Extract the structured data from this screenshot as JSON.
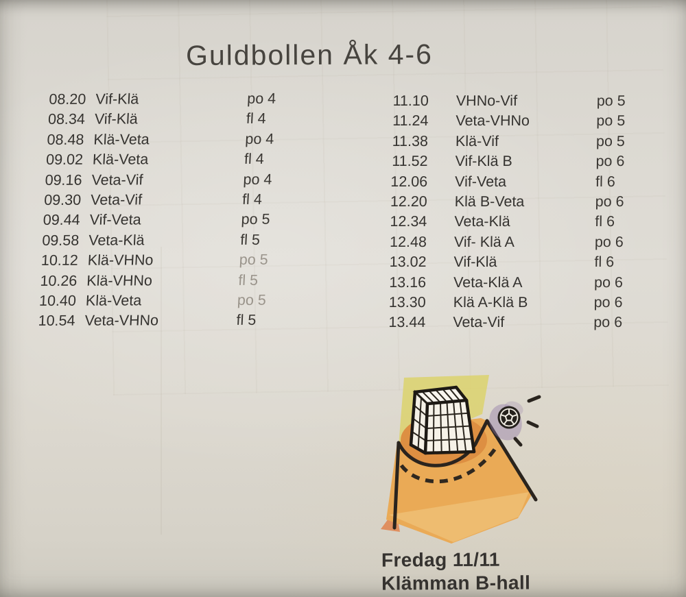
{
  "title": "Guldbollen Åk 4-6",
  "schedule": {
    "left": [
      {
        "time": "08.20",
        "match": "Vif-Klä",
        "category": "po 4"
      },
      {
        "time": "08.34",
        "match": "Vif-Klä",
        "category": "fl 4"
      },
      {
        "time": "08.48",
        "match": "Klä-Veta",
        "category": "po 4"
      },
      {
        "time": "09.02",
        "match": "Klä-Veta",
        "category": "fl 4"
      },
      {
        "time": "09.16",
        "match": "Veta-Vif",
        "category": "po 4"
      },
      {
        "time": "09.30",
        "match": "Veta-Vif",
        "category": "fl 4"
      },
      {
        "time": "09.44",
        "match": "Vif-Veta",
        "category": "po 5"
      },
      {
        "time": "09.58",
        "match": "Veta-Klä",
        "category": "fl 5"
      },
      {
        "time": "10.12",
        "match": "Klä-VHNo",
        "category": "po 5",
        "faded": true
      },
      {
        "time": "10.26",
        "match": "Klä-VHNo",
        "category": "fl 5",
        "faded": true
      },
      {
        "time": "10.40",
        "match": "Klä-Veta",
        "category": "po 5",
        "faded": true
      },
      {
        "time": "10.54",
        "match": "Veta-VHNo",
        "category": "fl 5"
      }
    ],
    "right": [
      {
        "time": "11.10",
        "match": "VHNo-Vif",
        "category": "po 5"
      },
      {
        "time": "11.24",
        "match": "Veta-VHNo",
        "category": "po 5"
      },
      {
        "time": "11.38",
        "match": "Klä-Vif",
        "category": "po 5"
      },
      {
        "time": "11.52",
        "match": "Vif-Klä B",
        "category": "po 6"
      },
      {
        "time": "12.06",
        "match": "Vif-Veta",
        "category": "fl 6"
      },
      {
        "time": "12.20",
        "match": "Klä B-Veta",
        "category": "po 6"
      },
      {
        "time": "12.34",
        "match": "Veta-Klä",
        "category": "fl 6"
      },
      {
        "time": "12.48",
        "match": "Vif- Klä A",
        "category": "po 6"
      },
      {
        "time": "13.02",
        "match": "Vif-Klä",
        "category": "fl 6"
      },
      {
        "time": "13.16",
        "match": "Veta-Klä A",
        "category": "po 6"
      },
      {
        "time": "13.30",
        "match": "Klä A-Klä B",
        "category": "po 6"
      },
      {
        "time": "13.44",
        "match": "Veta-Vif",
        "category": "po 6"
      }
    ]
  },
  "footer": {
    "date": "Fredag 11/11",
    "venue": "Klämman B-hall"
  },
  "illustration": {
    "name": "handball-goal-and-ball-clipart",
    "colors": {
      "court": "#eaaa56",
      "court_inner": "#dd8f42",
      "court_light": "#f2cd8a",
      "patch": "#dcd26d",
      "salmon": "#df8f60",
      "ball_halo": "#8f77a6",
      "ink": "#2a241e"
    }
  }
}
